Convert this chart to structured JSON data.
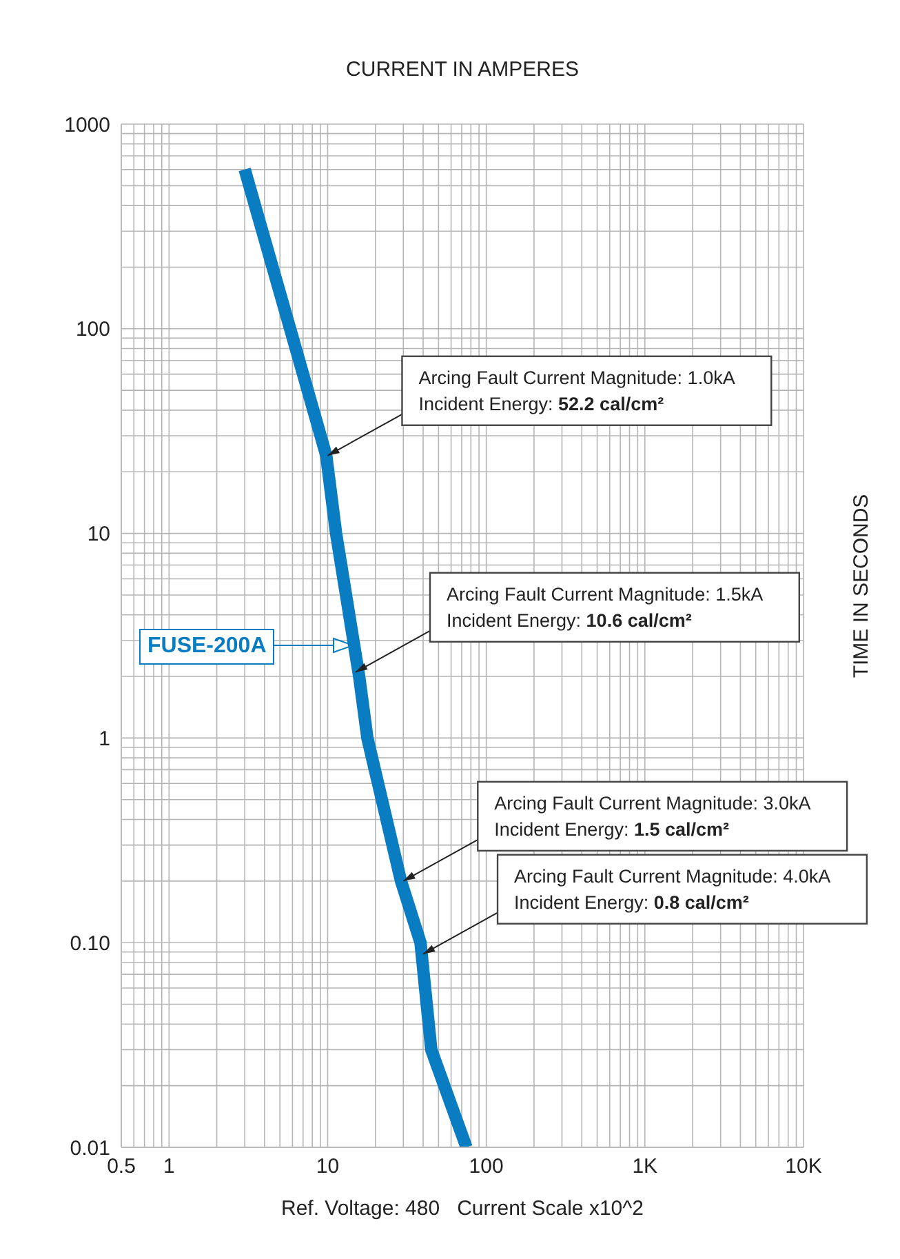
{
  "chart_data": {
    "type": "line",
    "xlabel": "CURRENT IN AMPERES",
    "ylabel": "TIME IN SECONDS",
    "log": "xy",
    "grid": true,
    "legend": "left",
    "marker": "none",
    "line_style": "solid",
    "xlim": [
      0.5,
      10000
    ],
    "ylim": [
      0.01,
      1000
    ],
    "xticks": [
      0.5,
      {
        "value": 0.6,
        "label": null
      },
      {
        "value": 0.7,
        "label": null
      },
      {
        "value": 0.8,
        "label": null
      },
      {
        "value": 0.9,
        "label": null
      },
      1,
      {
        "value": 2,
        "label": null
      },
      {
        "value": 3,
        "label": null
      },
      {
        "value": 4,
        "label": null
      },
      {
        "value": 5,
        "label": null
      },
      {
        "value": 6,
        "label": null
      },
      {
        "value": 7,
        "label": null
      },
      {
        "value": 8,
        "label": null
      },
      {
        "value": 9,
        "label": null
      },
      10,
      {
        "value": 20,
        "label": null
      },
      {
        "value": 30,
        "label": null
      },
      {
        "value": 40,
        "label": null
      },
      {
        "value": 50,
        "label": null
      },
      {
        "value": 60,
        "label": null
      },
      {
        "value": 70,
        "label": null
      },
      {
        "value": 80,
        "label": null
      },
      {
        "value": 90,
        "label": null
      },
      100,
      {
        "value": 200,
        "label": null
      },
      {
        "value": 300,
        "label": null
      },
      {
        "value": 400,
        "label": null
      },
      {
        "value": 500,
        "label": null
      },
      {
        "value": 600,
        "label": null
      },
      {
        "value": 700,
        "label": null
      },
      {
        "value": 800,
        "label": null
      },
      {
        "value": 900,
        "label": null
      },
      {
        "value": 1000,
        "label": "1K"
      },
      {
        "value": 2000,
        "label": null
      },
      {
        "value": 3000,
        "label": null
      },
      {
        "value": 4000,
        "label": null
      },
      {
        "value": 5000,
        "label": null
      },
      {
        "value": 6000,
        "label": null
      },
      {
        "value": 7000,
        "label": null
      },
      {
        "value": 8000,
        "label": null
      },
      {
        "value": 9000,
        "label": null
      },
      {
        "value": 10000,
        "label": "10K"
      }
    ],
    "yticks": [
      0.01,
      {
        "value": 0.02,
        "label": null
      },
      {
        "value": 0.03,
        "label": null
      },
      {
        "value": 0.04,
        "label": null
      },
      {
        "value": 0.05,
        "label": null
      },
      {
        "value": 0.06,
        "label": null
      },
      {
        "value": 0.07,
        "label": null
      },
      {
        "value": 0.08,
        "label": null
      },
      {
        "value": 0.09,
        "label": null
      },
      {
        "value": 0.1,
        "label": "0.10"
      },
      {
        "value": 0.2,
        "label": null
      },
      {
        "value": 0.3,
        "label": null
      },
      {
        "value": 0.4,
        "label": null
      },
      {
        "value": 0.5,
        "label": null
      },
      {
        "value": 0.6,
        "label": null
      },
      {
        "value": 0.7,
        "label": null
      },
      {
        "value": 0.8,
        "label": null
      },
      {
        "value": 0.9,
        "label": null
      },
      1,
      {
        "value": 2,
        "label": null
      },
      {
        "value": 3,
        "label": null
      },
      {
        "value": 4,
        "label": null
      },
      {
        "value": 5,
        "label": null
      },
      {
        "value": 6,
        "label": null
      },
      {
        "value": 7,
        "label": null
      },
      {
        "value": 8,
        "label": null
      },
      {
        "value": 9,
        "label": null
      },
      10,
      {
        "value": 20,
        "label": null
      },
      {
        "value": 30,
        "label": null
      },
      {
        "value": 40,
        "label": null
      },
      {
        "value": 50,
        "label": null
      },
      {
        "value": 60,
        "label": null
      },
      {
        "value": 70,
        "label": null
      },
      {
        "value": 80,
        "label": null
      },
      {
        "value": 90,
        "label": null
      },
      100,
      {
        "value": 200,
        "label": null
      },
      {
        "value": 300,
        "label": null
      },
      {
        "value": 400,
        "label": null
      },
      {
        "value": 500,
        "label": null
      },
      {
        "value": 600,
        "label": null
      },
      {
        "value": 700,
        "label": null
      },
      {
        "value": 800,
        "label": null
      },
      {
        "value": 900,
        "label": null
      },
      1000
    ],
    "series": [
      {
        "name": "FUSE-200A",
        "color": "#0a7cc1",
        "x": [
          3,
          5.8,
          9.8,
          11.3,
          15.8,
          17.8,
          29,
          38.5,
          45,
          75
        ],
        "values": [
          600,
          100,
          24,
          10,
          2,
          1,
          0.2,
          0.1,
          0.03,
          0.01
        ]
      }
    ],
    "annotations": [
      {
        "text": "Arcing Fault Current Magnitude: 1.0kA\nIncident Energy: 52.2 cal/cm²",
        "x": 10,
        "y": 24
      },
      {
        "text": "Arcing Fault Current Magnitude: 1.5kA\nIncident Energy: 10.6 cal/cm²",
        "x": 15,
        "y": 2.1
      },
      {
        "text": "Arcing Fault Current Magnitude: 3.0kA\nIncident Energy: 1.5 cal/cm²",
        "x": 30,
        "y": 0.2
      },
      {
        "text": "Arcing Fault Current Magnitude: 4.0kA\nIncident Energy: 0.8 cal/cm²",
        "x": 40,
        "y": 0.088
      },
      "Ref. Voltage: 480   Current Scale x10^2"
    ]
  }
}
